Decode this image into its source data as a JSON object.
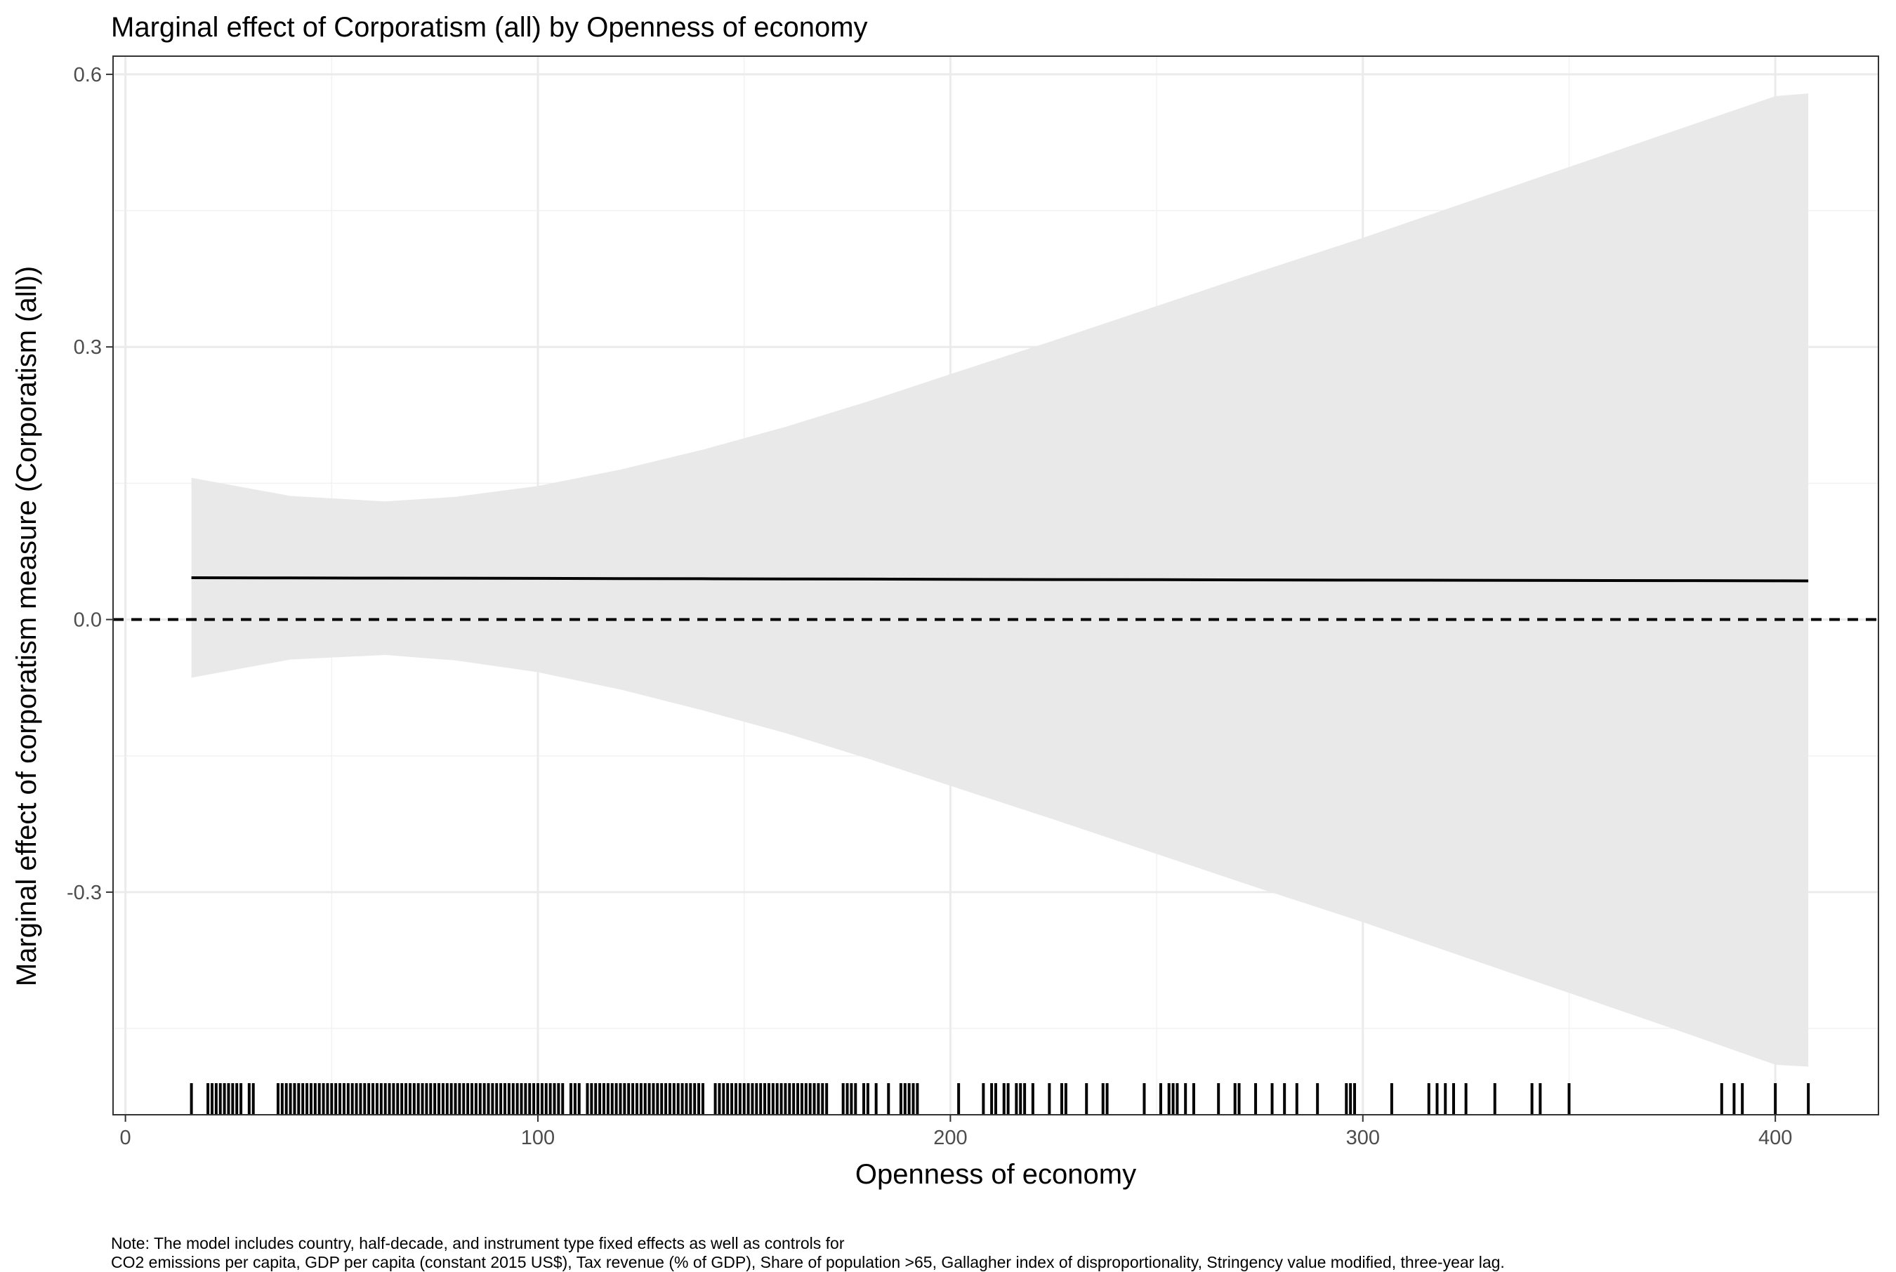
{
  "chart_data": {
    "type": "line",
    "title": "Marginal effect of Corporatism (all) by Openness of economy",
    "xlabel": "Openness of economy",
    "ylabel": "Marginal effect of corporatism measure (Corporatism (all))",
    "xlim": [
      -3,
      425
    ],
    "ylim": [
      -0.545,
      0.62
    ],
    "x_ticks": [
      {
        "value": 0,
        "label": "0"
      },
      {
        "value": 100,
        "label": "100"
      },
      {
        "value": 200,
        "label": "200"
      },
      {
        "value": 300,
        "label": "300"
      },
      {
        "value": 400,
        "label": "400"
      }
    ],
    "y_ticks": [
      {
        "value": 0.6,
        "label": "0.6"
      },
      {
        "value": 0.3,
        "label": "0.3"
      },
      {
        "value": 0.0,
        "label": "0.0"
      },
      {
        "value": -0.3,
        "label": "-0.3"
      }
    ],
    "grid": true,
    "reference_line": {
      "y": 0,
      "style": "dashed"
    },
    "series": [
      {
        "x": [
          16,
          40,
          63,
          80,
          100,
          120,
          140,
          160,
          180,
          200,
          225,
          250,
          275,
          300,
          325,
          350,
          375,
          400,
          408
        ],
        "estimate": [
          0.046,
          0.0458,
          0.0456,
          0.0455,
          0.0453,
          0.0451,
          0.0449,
          0.0447,
          0.0445,
          0.0443,
          0.044,
          0.0438,
          0.0436,
          0.0434,
          0.0432,
          0.043,
          0.0428,
          0.0426,
          0.0425
        ],
        "upper": [
          0.156,
          0.136,
          0.13,
          0.135,
          0.147,
          0.165,
          0.187,
          0.212,
          0.24,
          0.27,
          0.307,
          0.345,
          0.383,
          0.42,
          0.459,
          0.498,
          0.537,
          0.576,
          0.579
        ],
        "lower": [
          -0.064,
          -0.044,
          -0.039,
          -0.045,
          -0.058,
          -0.077,
          -0.1,
          -0.125,
          -0.153,
          -0.183,
          -0.22,
          -0.258,
          -0.296,
          -0.333,
          -0.372,
          -0.411,
          -0.45,
          -0.49,
          -0.492
        ]
      }
    ],
    "rug_x": [
      16,
      20,
      21,
      22,
      23,
      24,
      25,
      26,
      27,
      28,
      30,
      31,
      37,
      38,
      39,
      40,
      41,
      42,
      43,
      44,
      45,
      46,
      47,
      48,
      49,
      50,
      51,
      52,
      53,
      54,
      55,
      56,
      57,
      58,
      59,
      60,
      61,
      62,
      63,
      64,
      65,
      66,
      67,
      68,
      69,
      70,
      71,
      72,
      73,
      74,
      75,
      76,
      77,
      78,
      79,
      80,
      81,
      82,
      83,
      84,
      85,
      86,
      87,
      88,
      89,
      90,
      91,
      92,
      93,
      94,
      95,
      96,
      97,
      98,
      99,
      100,
      101,
      102,
      103,
      104,
      105,
      106,
      108,
      109,
      110,
      112,
      113,
      114,
      115,
      116,
      117,
      118,
      119,
      120,
      121,
      122,
      123,
      124,
      125,
      126,
      127,
      128,
      129,
      130,
      131,
      132,
      133,
      134,
      135,
      136,
      137,
      138,
      139,
      140,
      143,
      144,
      145,
      146,
      147,
      148,
      149,
      150,
      151,
      152,
      153,
      154,
      155,
      156,
      157,
      158,
      159,
      160,
      161,
      162,
      163,
      164,
      165,
      166,
      167,
      168,
      169,
      170,
      174,
      175,
      176,
      177,
      179,
      180,
      182,
      185,
      188,
      189,
      190,
      191,
      192,
      202,
      208,
      210,
      211,
      213,
      214,
      216,
      217,
      218,
      220,
      224,
      227,
      228,
      233,
      237,
      238,
      247,
      251,
      253,
      254,
      255,
      257,
      259,
      265,
      269,
      270,
      274,
      278,
      281,
      284,
      289,
      296,
      297,
      298,
      307,
      316,
      318,
      320,
      322,
      325,
      332,
      341,
      343,
      350,
      387,
      390,
      392,
      400,
      408
    ]
  }
}
